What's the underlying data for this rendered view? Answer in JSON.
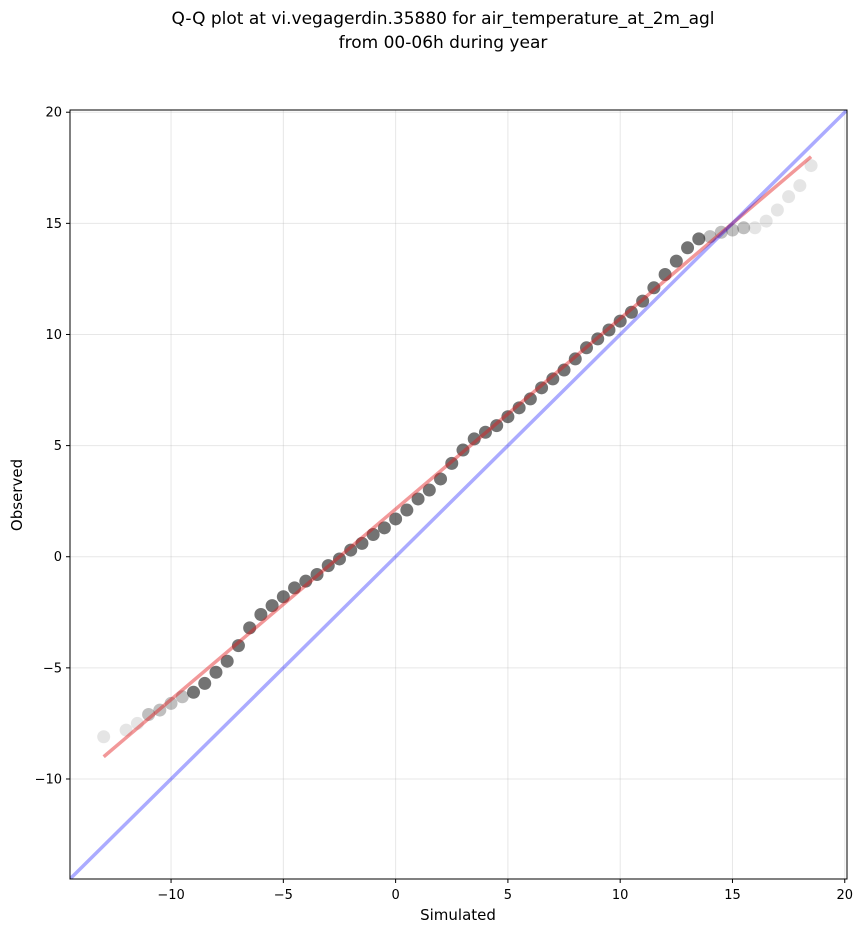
{
  "chart_data": {
    "type": "scatter",
    "title_lines": [
      "Q-Q plot at vi.vegagerdin.35880 for air_temperature_at_2m_agl",
      "from 00-06h during year"
    ],
    "xlabel": "Simulated",
    "ylabel": "Observed",
    "xlim": [
      -14.5,
      20.1
    ],
    "ylim": [
      -14.5,
      20.1
    ],
    "x_ticks": [
      -10,
      -5,
      0,
      5,
      10,
      15,
      20
    ],
    "y_ticks": [
      -10,
      -5,
      0,
      5,
      10,
      15,
      20
    ],
    "grid": true,
    "colors": {
      "points": "#000000",
      "fit_line": "#e31a1c",
      "identity_line": "#0000ff"
    },
    "identity_line": {
      "x": [
        -14.5,
        20.1
      ],
      "y": [
        -14.5,
        20.1
      ]
    },
    "fit_line": {
      "x": [
        -13,
        18.5
      ],
      "y": [
        -9,
        18
      ]
    },
    "quantiles": {
      "x": [
        -13,
        -12,
        -11.5,
        -11,
        -10.5,
        -10,
        -9.5,
        -9,
        -8.5,
        -8,
        -7.5,
        -7,
        -6.5,
        -6,
        -5.5,
        -5,
        -4.5,
        -4,
        -3.5,
        -3,
        -2.5,
        -2,
        -1.5,
        -1,
        -0.5,
        0,
        0.5,
        1,
        1.5,
        2,
        2.5,
        3,
        3.5,
        4,
        4.5,
        5,
        5.5,
        6,
        6.5,
        7,
        7.5,
        8,
        8.5,
        9,
        9.5,
        10,
        10.5,
        11,
        11.5,
        12,
        12.5,
        13,
        13.5,
        14,
        14.5,
        15,
        15.5,
        16,
        16.5,
        17,
        17.5,
        18,
        18.5
      ],
      "y": [
        -8.1,
        -7.8,
        -7.5,
        -7.1,
        -6.9,
        -6.6,
        -6.3,
        -6.1,
        -5.7,
        -5.2,
        -4.7,
        -4.0,
        -3.2,
        -2.6,
        -2.2,
        -1.8,
        -1.4,
        -1.1,
        -0.8,
        -0.4,
        -0.1,
        0.3,
        0.6,
        1.0,
        1.3,
        1.7,
        2.1,
        2.6,
        3.0,
        3.5,
        4.2,
        4.8,
        5.3,
        5.6,
        5.9,
        6.3,
        6.7,
        7.1,
        7.6,
        8.0,
        8.4,
        8.9,
        9.4,
        9.8,
        10.2,
        10.6,
        11.0,
        11.5,
        12.1,
        12.7,
        13.3,
        13.9,
        14.3,
        14.4,
        14.6,
        14.7,
        14.8,
        14.8,
        15.1,
        15.6,
        16.2,
        16.7,
        17.6
      ]
    }
  }
}
